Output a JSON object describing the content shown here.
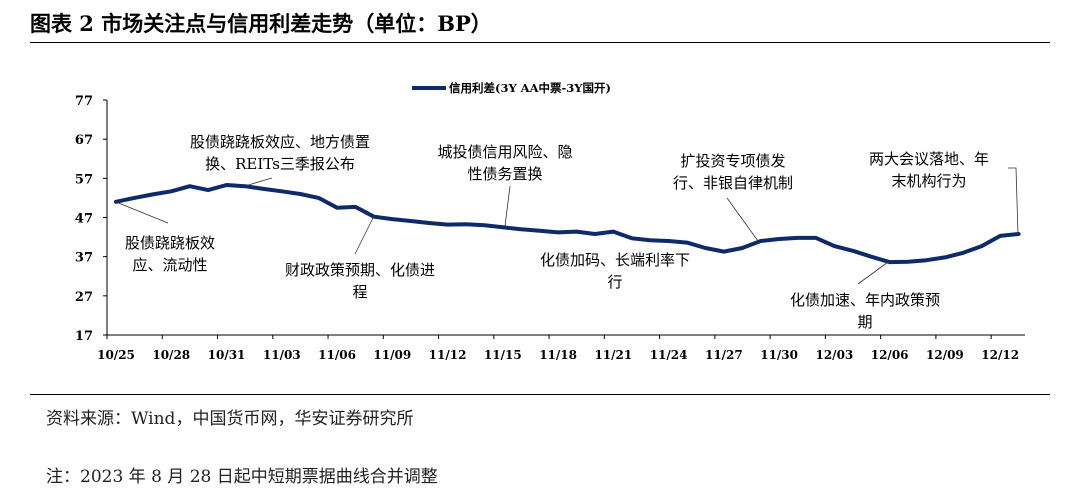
{
  "title": "图表 2 市场关注点与信用利差走势（单位：BP）",
  "source": "资料来源：Wind，中国货币网，华安证券研究所",
  "footnote": "注：2023 年 8 月 28 日起中短期票据曲线合并调整",
  "chart_data": {
    "type": "line",
    "title": "",
    "xlabel": "",
    "ylabel": "",
    "ylim": [
      17,
      77
    ],
    "yticks": [
      17,
      27,
      37,
      47,
      57,
      67,
      77
    ],
    "grid": false,
    "legend": "top-center",
    "line_color": "#0d2a6b",
    "x": [
      "10/25",
      "10/26",
      "10/27",
      "10/28",
      "10/29",
      "10/30",
      "10/31",
      "11/01",
      "11/02",
      "11/03",
      "11/04",
      "11/05",
      "11/06",
      "11/07",
      "11/08",
      "11/09",
      "11/10",
      "11/11",
      "11/12",
      "11/13",
      "11/14",
      "11/15",
      "11/16",
      "11/17",
      "11/18",
      "11/19",
      "11/20",
      "11/21",
      "11/22",
      "11/23",
      "11/24",
      "11/25",
      "11/26",
      "11/27",
      "11/28",
      "11/29",
      "11/30",
      "12/01",
      "12/02",
      "12/03",
      "12/04",
      "12/05",
      "12/06",
      "12/07",
      "12/08",
      "12/09",
      "12/10",
      "12/11",
      "12/12",
      "12/13"
    ],
    "xtick_labels": [
      "10/25",
      "10/28",
      "10/31",
      "11/03",
      "11/06",
      "11/09",
      "11/12",
      "11/15",
      "11/18",
      "11/21",
      "11/24",
      "11/27",
      "11/30",
      "12/03",
      "12/06",
      "12/09",
      "12/12"
    ],
    "series": [
      {
        "name": "信用利差(3Y AA中票-3Y国开)",
        "values": [
          51,
          52,
          52.9,
          53.7,
          55,
          54,
          55.3,
          55,
          54.3,
          53.7,
          53,
          52,
          49.5,
          49.7,
          47.2,
          46.6,
          46.1,
          45.6,
          45.2,
          45.3,
          45,
          44.5,
          44,
          43.6,
          43.2,
          43.4,
          42.8,
          43.4,
          41.7,
          41.2,
          41,
          40.6,
          39.2,
          38.3,
          39.2,
          41,
          41.5,
          41.8,
          41.8,
          39.7,
          38.5,
          37,
          35.6,
          35.7,
          36.1,
          36.8,
          38,
          39.7,
          42.3,
          42.8
        ]
      }
    ],
    "annotations": [
      {
        "lines": [
          "股债跷跷板效",
          "应、流动性"
        ],
        "at": "10/25"
      },
      {
        "lines": [
          "股债跷跷板效应、地方债置",
          "换、REITs三季报公布"
        ],
        "at": "11/01"
      },
      {
        "lines": [
          "财政政策预期、化债进",
          "程"
        ],
        "at": "11/08"
      },
      {
        "lines": [
          "城投债信用风险、隐",
          "性债务置换"
        ],
        "at": "11/15"
      },
      {
        "lines": [
          "化债加码、长端利率下",
          "行"
        ],
        "at": ""
      },
      {
        "lines": [
          "扩投资专项债发",
          "行、非银自律机制"
        ],
        "at": "11/29"
      },
      {
        "lines": [
          "化债加速、年内政策预",
          "期"
        ],
        "at": "12/06"
      },
      {
        "lines": [
          "两大会议落地、年",
          "末机构行为"
        ],
        "at": "12/13"
      }
    ]
  }
}
